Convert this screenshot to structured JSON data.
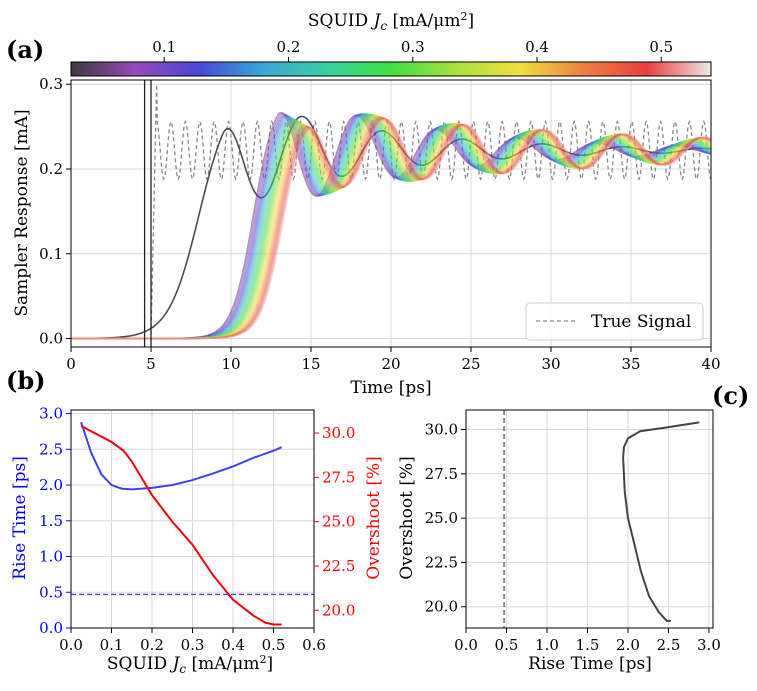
{
  "chart_data": [
    {
      "panel": "(a)",
      "type": "line",
      "xlabel": "Time [ps]",
      "ylabel": "Sampler Response [mA]",
      "xlim": [
        0,
        40
      ],
      "ylim": [
        -0.01,
        0.305
      ],
      "xticks": [
        0,
        5,
        10,
        15,
        20,
        25,
        30,
        35,
        40
      ],
      "yticks": [
        0.0,
        0.1,
        0.2,
        0.3
      ],
      "grid": true,
      "legend": {
        "entries": [
          "True Signal"
        ],
        "placement": "bottom-right"
      },
      "vertical_lines_x": [
        4.6,
        5.0
      ],
      "true_signal": {
        "style": "dashed",
        "color": "#888888",
        "start": 5.0,
        "mean": 0.222,
        "amplitude": 0.035,
        "period": 0.9,
        "initial_peak": 0.3
      },
      "colorbar": {
        "label": "SQUID J_c [mA/μm²]",
        "range": [
          0.025,
          0.54
        ],
        "ticks": [
          0.1,
          0.2,
          0.3,
          0.4,
          0.5
        ],
        "colormap": [
          "#3b3b3b",
          "#9848b8",
          "#4848d8",
          "#38a8d8",
          "#38d0a0",
          "#40e040",
          "#a8e040",
          "#f0e040",
          "#f08040",
          "#e84040",
          "#f0e8e8"
        ]
      },
      "series_param": {
        "jc_values": [
          0.025,
          0.05,
          0.075,
          0.1,
          0.125,
          0.15,
          0.175,
          0.2,
          0.225,
          0.25,
          0.275,
          0.3,
          0.325,
          0.35,
          0.375,
          0.4,
          0.425,
          0.45,
          0.475,
          0.5,
          0.52
        ],
        "rise_center_ps": [
          8.0,
          11.4,
          13.2
        ],
        "final_value": 0.222,
        "ring_amplitude": 0.07,
        "ring_period_ps": 5.0
      }
    },
    {
      "panel": "(b)",
      "type": "line",
      "xlabel": "SQUID J_c [mA/μm²]",
      "xlim": [
        0.0,
        0.6
      ],
      "xticks": [
        0.0,
        0.1,
        0.2,
        0.3,
        0.4,
        0.5,
        0.6
      ],
      "grid": true,
      "left_axis": {
        "label": "Rise Time [ps]",
        "color": "#0000ff",
        "ylim": [
          0.0,
          3.05
        ],
        "yticks": [
          0.0,
          0.5,
          1.0,
          1.5,
          2.0,
          2.5,
          3.0
        ]
      },
      "right_axis": {
        "label": "Overshoot [%]",
        "color": "#ff0000",
        "ylim": [
          19.0,
          31.3
        ],
        "yticks": [
          20.0,
          22.5,
          25.0,
          27.5,
          30.0
        ]
      },
      "series": [
        {
          "name": "Rise Time",
          "axis": "left",
          "color": "#4040f0",
          "x": [
            0.025,
            0.05,
            0.075,
            0.1,
            0.125,
            0.15,
            0.2,
            0.25,
            0.3,
            0.35,
            0.4,
            0.45,
            0.5,
            0.52
          ],
          "values": [
            2.88,
            2.45,
            2.15,
            2.0,
            1.95,
            1.94,
            1.96,
            2.0,
            2.07,
            2.16,
            2.26,
            2.38,
            2.48,
            2.53
          ]
        },
        {
          "name": "Overshoot",
          "axis": "right",
          "color": "#ee0000",
          "x": [
            0.025,
            0.05,
            0.1,
            0.13,
            0.15,
            0.2,
            0.25,
            0.3,
            0.35,
            0.4,
            0.45,
            0.48,
            0.5,
            0.52
          ],
          "values": [
            30.4,
            30.1,
            29.5,
            29.0,
            28.4,
            26.5,
            25.0,
            23.7,
            22.0,
            20.6,
            19.7,
            19.3,
            19.2,
            19.2
          ]
        }
      ],
      "reference_line": {
        "axis": "left",
        "y": 0.47,
        "style": "dashed",
        "color": "#4040f0"
      }
    },
    {
      "panel": "(c)",
      "type": "line",
      "xlabel": "Rise Time [ps]",
      "ylabel": "Overshoot [%]",
      "xlim": [
        0.0,
        3.05
      ],
      "ylim": [
        18.8,
        31.1
      ],
      "xticks": [
        0.0,
        0.5,
        1.0,
        1.5,
        2.0,
        2.5,
        3.0
      ],
      "yticks": [
        20.0,
        22.5,
        25.0,
        27.5,
        30.0
      ],
      "grid": true,
      "reference_line": {
        "x": 0.47,
        "style": "dashed",
        "color": "#444444"
      },
      "series": [
        {
          "name": "Overshoot vs Rise Time",
          "color": "#444444",
          "x": [
            2.53,
            2.48,
            2.38,
            2.26,
            2.16,
            2.07,
            2.0,
            1.96,
            1.94,
            1.95,
            2.0,
            2.15,
            2.45,
            2.88
          ],
          "values": [
            19.2,
            19.2,
            19.7,
            20.6,
            22.0,
            23.7,
            25.0,
            26.5,
            28.4,
            29.0,
            29.5,
            29.9,
            30.1,
            30.4
          ]
        }
      ]
    }
  ]
}
